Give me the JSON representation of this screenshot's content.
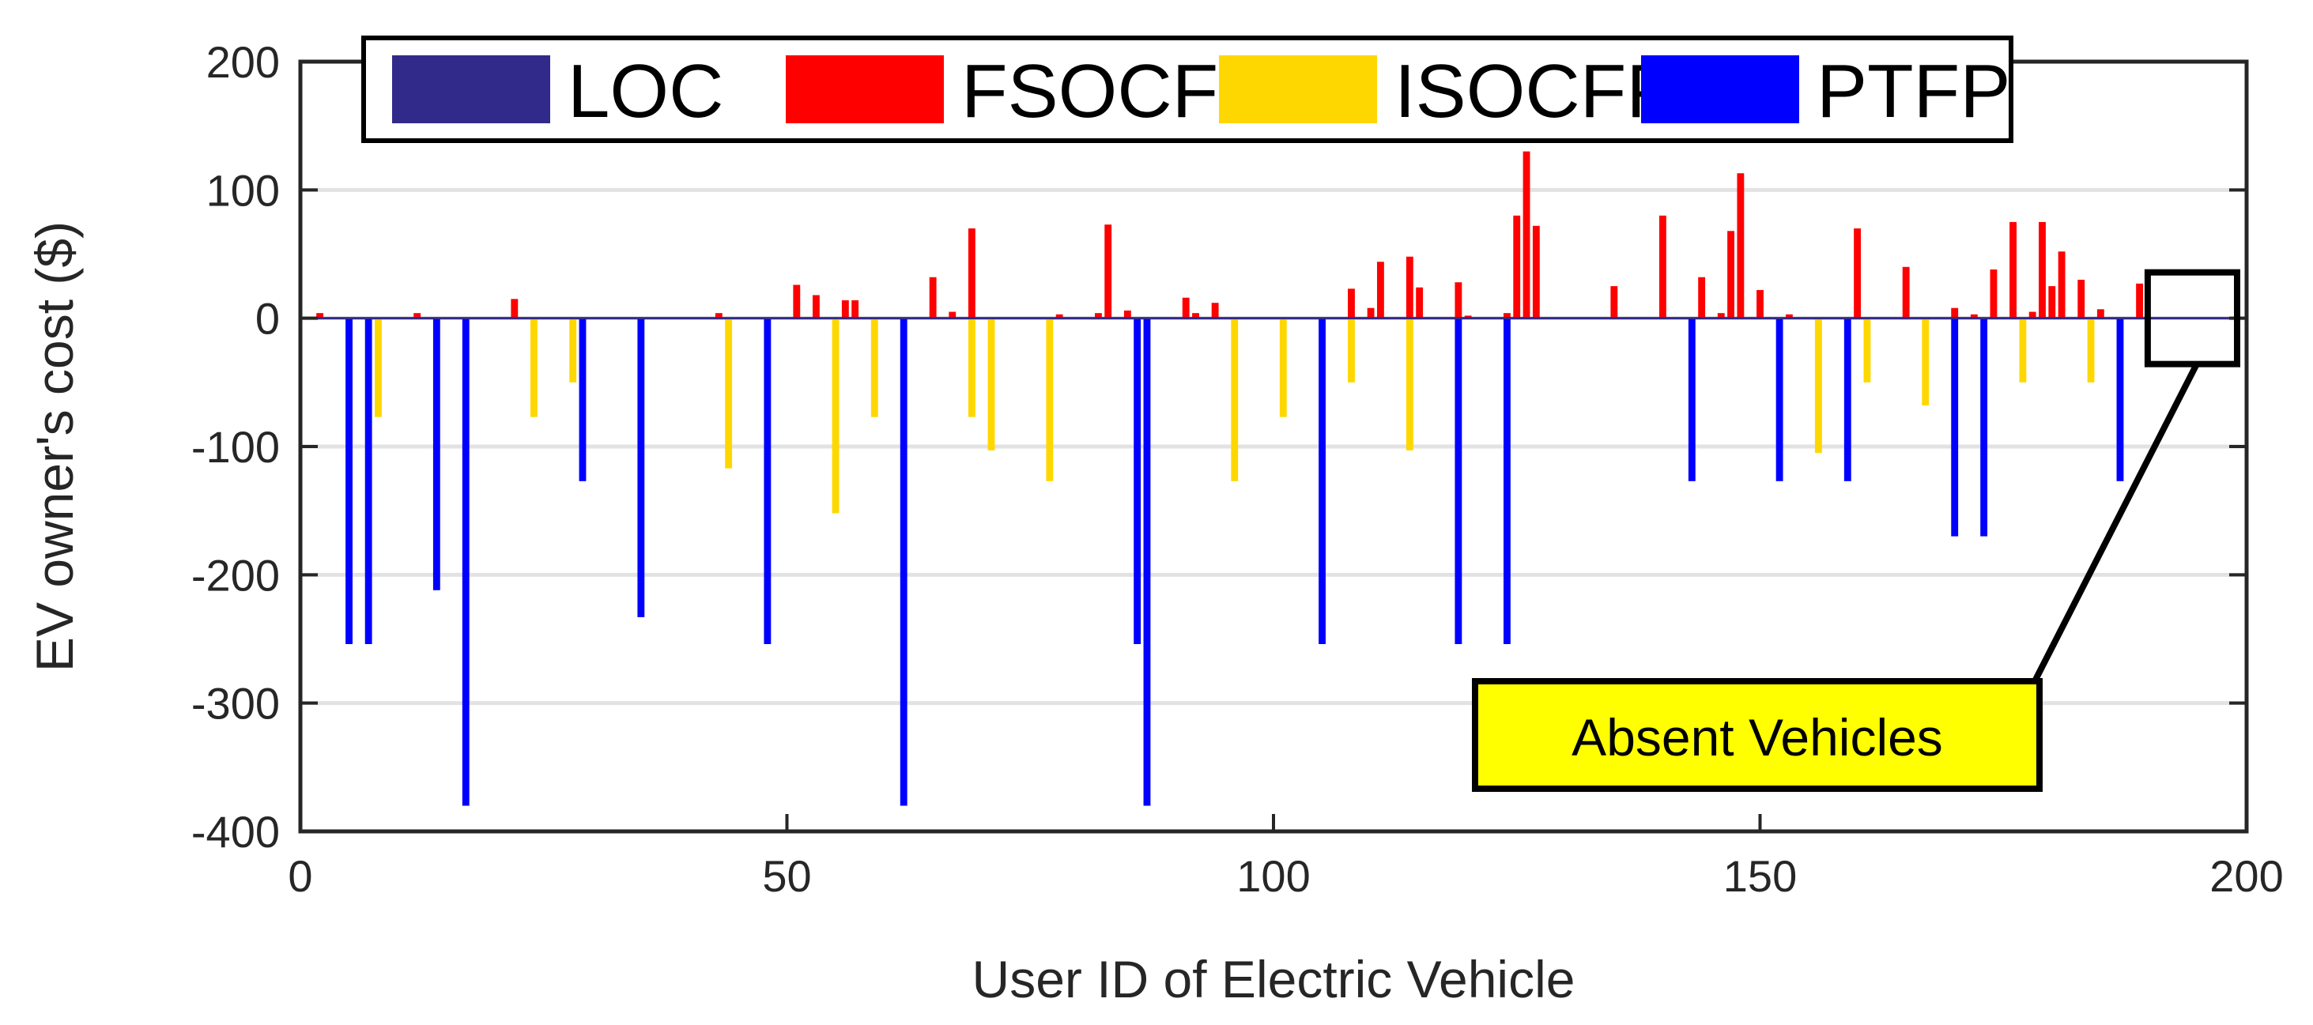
{
  "chart_data": {
    "type": "bar",
    "title": "",
    "xlabel": "User ID of Electric Vehicle",
    "ylabel": "EV owner's cost ($)",
    "xlim": [
      0,
      200
    ],
    "ylim": [
      -400,
      200
    ],
    "xticks": [
      0,
      50,
      100,
      150,
      200
    ],
    "yticks": [
      -400,
      -300,
      -200,
      -100,
      0,
      100,
      200
    ],
    "grid": "horizontal",
    "legend_position": "top",
    "colors": {
      "LOC": "#322a8a",
      "FSOCFP": "#ff0000",
      "ISOCFP": "#ffd700",
      "PTFP": "#0000ff",
      "grid": "#e2e2e2",
      "annotation_fill": "#ffff00"
    },
    "series": [
      {
        "name": "LOC",
        "points": []
      },
      {
        "name": "FSOCFP",
        "points": [
          [
            2,
            4
          ],
          [
            12,
            4
          ],
          [
            22,
            15
          ],
          [
            43,
            4
          ],
          [
            51,
            26
          ],
          [
            53,
            18
          ],
          [
            56,
            14
          ],
          [
            57,
            14
          ],
          [
            65,
            32
          ],
          [
            67,
            5
          ],
          [
            69,
            70
          ],
          [
            78,
            3
          ],
          [
            82,
            4
          ],
          [
            83,
            73
          ],
          [
            85,
            6
          ],
          [
            91,
            16
          ],
          [
            92,
            4
          ],
          [
            94,
            12
          ],
          [
            108,
            23
          ],
          [
            110,
            8
          ],
          [
            111,
            44
          ],
          [
            114,
            48
          ],
          [
            115,
            24
          ],
          [
            119,
            28
          ],
          [
            120,
            2
          ],
          [
            124,
            4
          ],
          [
            125,
            80
          ],
          [
            126,
            130
          ],
          [
            127,
            72
          ],
          [
            135,
            25
          ],
          [
            140,
            80
          ],
          [
            144,
            32
          ],
          [
            146,
            4
          ],
          [
            147,
            68
          ],
          [
            148,
            113
          ],
          [
            150,
            22
          ],
          [
            153,
            3
          ],
          [
            160,
            70
          ],
          [
            165,
            40
          ],
          [
            170,
            8
          ],
          [
            172,
            3
          ],
          [
            174,
            38
          ],
          [
            176,
            75
          ],
          [
            178,
            5
          ],
          [
            179,
            75
          ],
          [
            180,
            25
          ],
          [
            181,
            52
          ],
          [
            183,
            30
          ],
          [
            185,
            7
          ],
          [
            189,
            27
          ]
        ]
      },
      {
        "name": "ISOCFP",
        "points": [
          [
            8,
            -77
          ],
          [
            24,
            -77
          ],
          [
            28,
            -50
          ],
          [
            44,
            -117
          ],
          [
            55,
            -152
          ],
          [
            59,
            -77
          ],
          [
            69,
            -77
          ],
          [
            71,
            -103
          ],
          [
            77,
            -127
          ],
          [
            96,
            -127
          ],
          [
            101,
            -77
          ],
          [
            108,
            -50
          ],
          [
            114,
            -103
          ],
          [
            156,
            -105
          ],
          [
            161,
            -50
          ],
          [
            167,
            -68
          ],
          [
            177,
            -50
          ],
          [
            184,
            -50
          ]
        ]
      },
      {
        "name": "PTFP",
        "points": [
          [
            5,
            -254
          ],
          [
            7,
            -254
          ],
          [
            14,
            -212
          ],
          [
            17,
            -380
          ],
          [
            29,
            -127
          ],
          [
            35,
            -233
          ],
          [
            48,
            -254
          ],
          [
            62,
            -380
          ],
          [
            86,
            -254
          ],
          [
            87,
            -380
          ],
          [
            105,
            -254
          ],
          [
            119,
            -254
          ],
          [
            124,
            -254
          ],
          [
            143,
            -127
          ],
          [
            152,
            -127
          ],
          [
            159,
            -127
          ],
          [
            170,
            -170
          ],
          [
            173,
            -170
          ],
          [
            187,
            -127
          ]
        ]
      }
    ],
    "annotations": [
      {
        "text": "Absent Vehicles",
        "target_x_range": [
          190,
          200
        ],
        "target_y": 0
      }
    ]
  }
}
